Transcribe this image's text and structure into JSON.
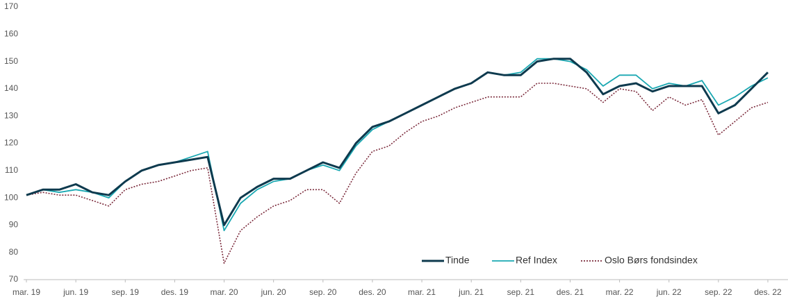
{
  "chart_data": {
    "type": "line",
    "x": [
      "mar. 19",
      "apr. 19",
      "mai 19",
      "jun. 19",
      "jul. 19",
      "aug. 19",
      "sep. 19",
      "okt. 19",
      "nov. 19",
      "des. 19",
      "jan. 20",
      "feb. 20",
      "mar. 20",
      "apr. 20",
      "mai 20",
      "jun. 20",
      "jul. 20",
      "aug. 20",
      "sep. 20",
      "okt. 20",
      "nov. 20",
      "des. 20",
      "jan. 21",
      "feb. 21",
      "mar. 21",
      "apr. 21",
      "mai 21",
      "jun. 21",
      "jul. 21",
      "aug. 21",
      "sep. 21",
      "okt. 21",
      "nov. 21",
      "des. 21",
      "jan. 22",
      "feb. 22",
      "mar. 22",
      "apr. 22",
      "mai 22",
      "jun. 22",
      "jul. 22",
      "aug. 22",
      "sep. 22",
      "okt. 22",
      "nov. 22",
      "des. 22"
    ],
    "xticks": [
      "mar. 19",
      "jun. 19",
      "sep. 19",
      "des. 19",
      "mar. 20",
      "jun. 20",
      "sep. 20",
      "des. 20",
      "mar. 21",
      "jun. 21",
      "sep. 21",
      "des. 21",
      "mar. 22",
      "jun. 22",
      "sep. 22",
      "des. 22"
    ],
    "ylim": [
      70,
      170
    ],
    "yticks": [
      70,
      80,
      90,
      100,
      110,
      120,
      130,
      140,
      150,
      160,
      170
    ],
    "grid": false,
    "legend": "bottom-right",
    "series": [
      {
        "name": "Tinde",
        "color": "#0e3a4e",
        "style": "solid",
        "values": [
          101,
          103,
          103,
          105,
          102,
          101,
          106,
          110,
          112,
          113,
          114,
          115,
          90,
          100,
          104,
          107,
          107,
          110,
          113,
          111,
          120,
          126,
          128,
          131,
          134,
          137,
          140,
          142,
          146,
          145,
          145,
          150,
          151,
          151,
          146,
          138,
          141,
          142,
          139,
          141,
          141,
          141,
          131,
          134,
          140,
          146
        ]
      },
      {
        "name": "Ref Index",
        "color": "#1aa8b2",
        "style": "solid",
        "values": [
          101,
          103,
          102,
          103,
          102,
          100,
          106,
          110,
          112,
          113,
          115,
          117,
          88,
          98,
          103,
          106,
          107,
          110,
          112,
          110,
          119,
          125,
          128,
          131,
          134,
          137,
          140,
          142,
          146,
          145,
          146,
          151,
          151,
          150,
          147,
          141,
          145,
          145,
          140,
          142,
          141,
          143,
          134,
          137,
          141,
          144
        ]
      },
      {
        "name": "Oslo Børs fondsindex",
        "color": "#7b2a3b",
        "style": "dotted",
        "values": [
          101,
          102,
          101,
          101,
          99,
          97,
          103,
          105,
          106,
          108,
          110,
          111,
          76,
          88,
          93,
          97,
          99,
          103,
          103,
          98,
          109,
          117,
          119,
          124,
          128,
          130,
          133,
          135,
          137,
          137,
          137,
          142,
          142,
          141,
          140,
          135,
          140,
          139,
          132,
          137,
          134,
          136,
          123,
          128,
          133,
          135
        ]
      }
    ]
  }
}
